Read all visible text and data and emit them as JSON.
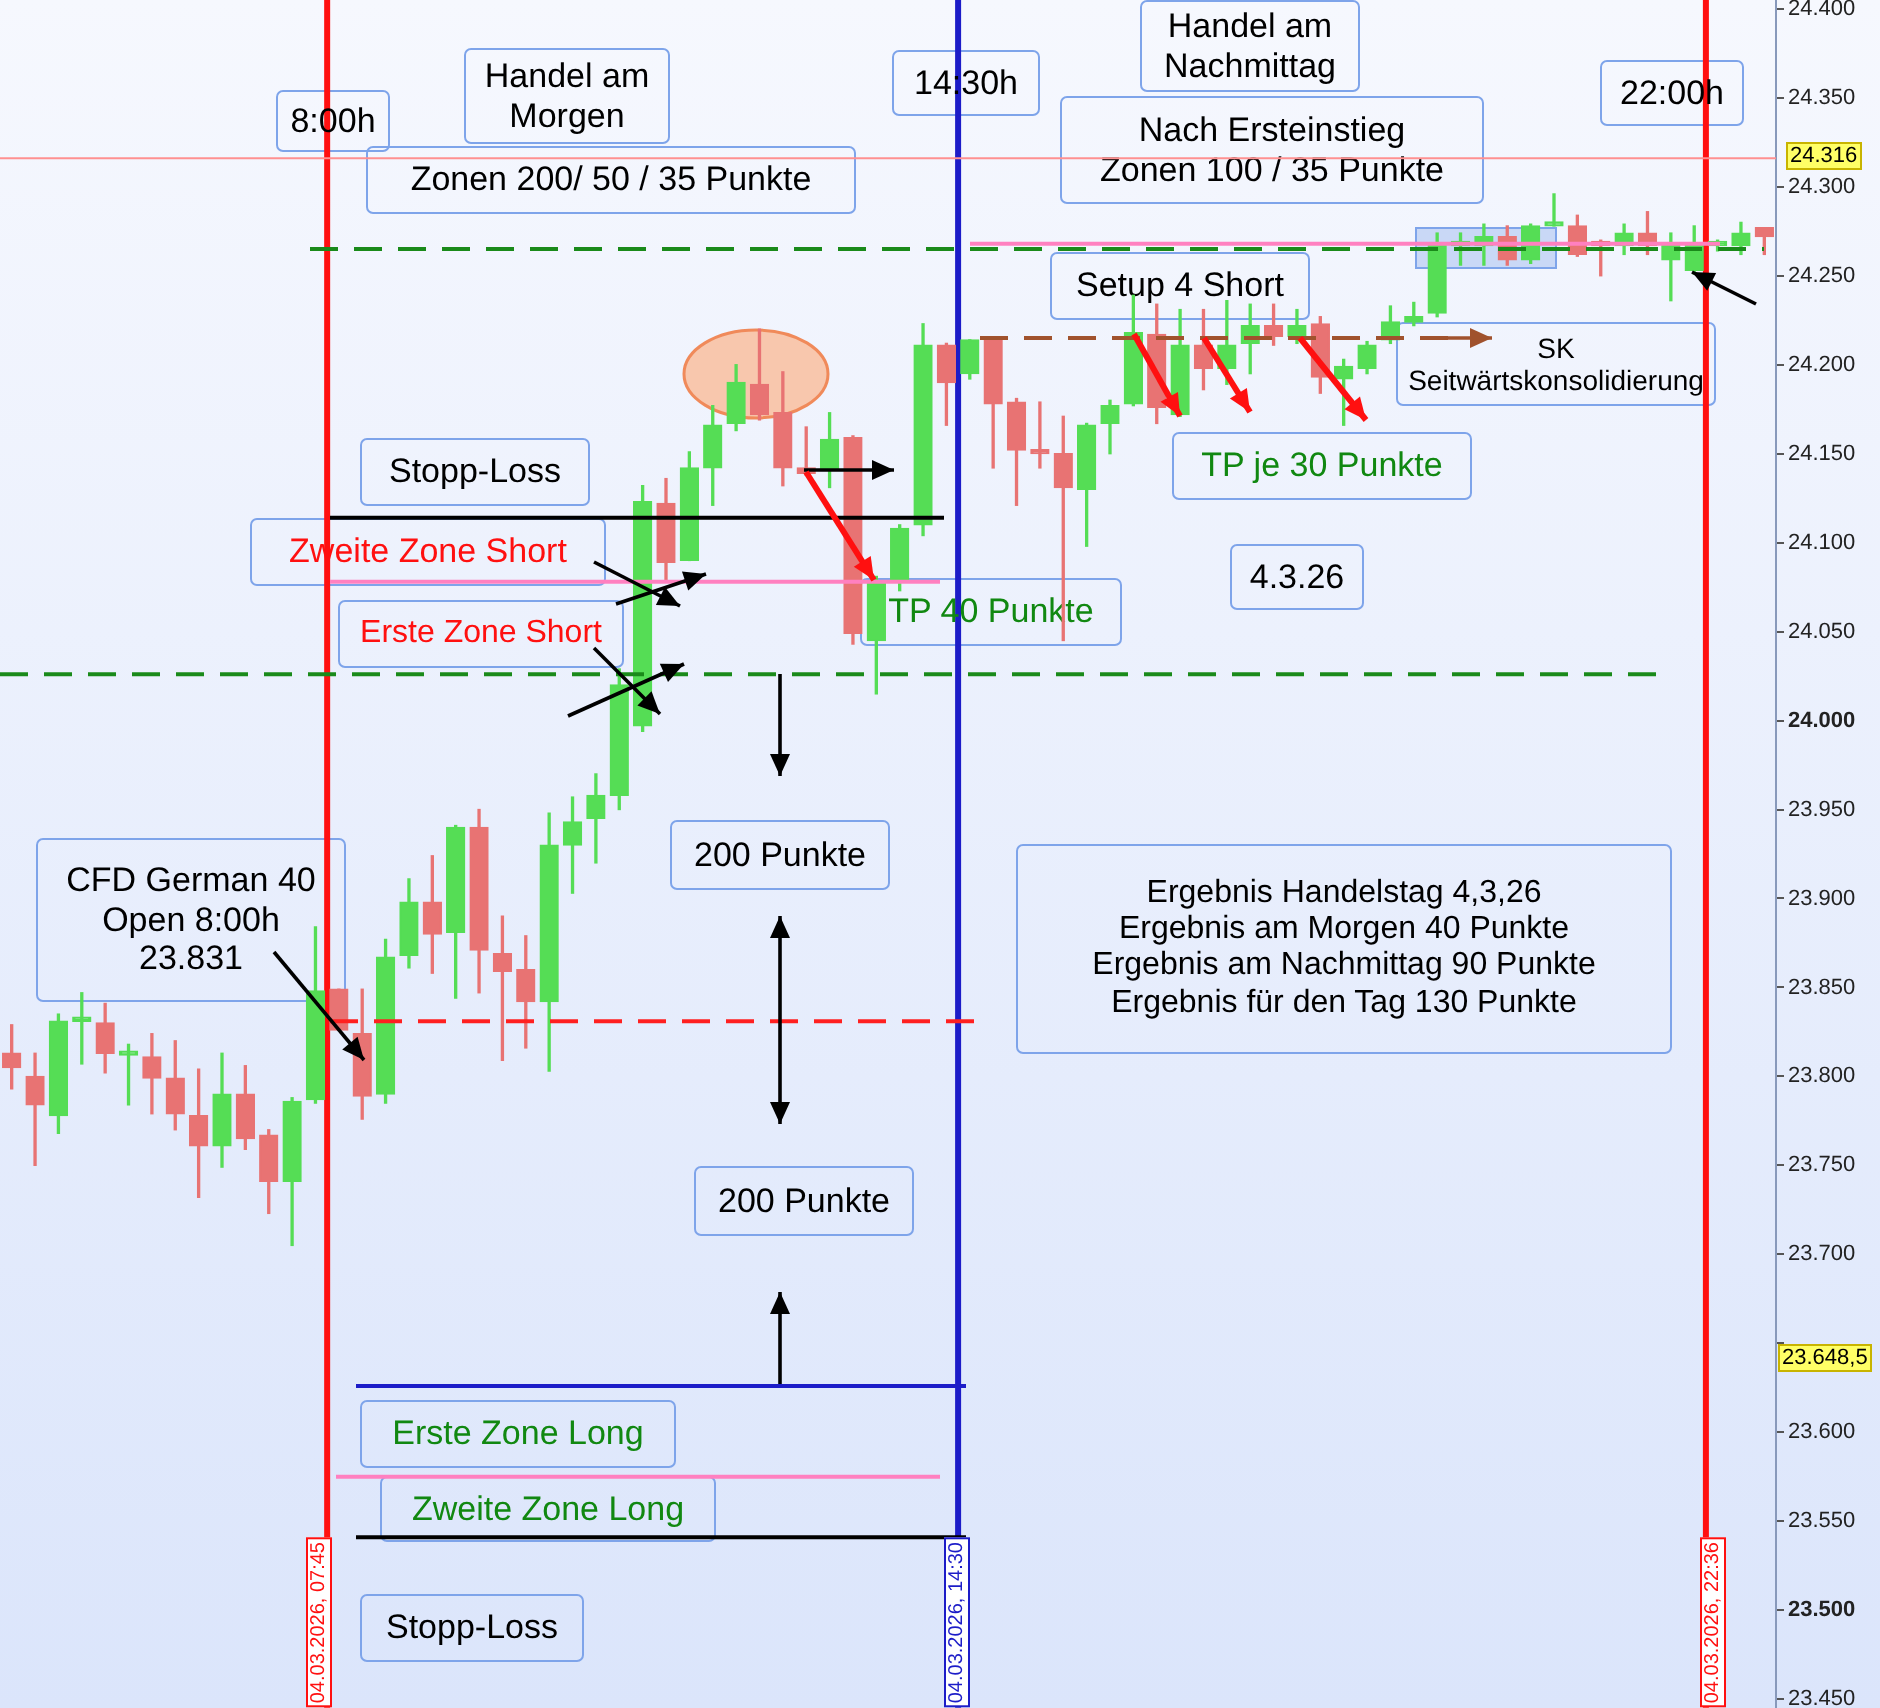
{
  "chart_data": {
    "type": "candlestick",
    "categories": [
      null,
      null,
      null,
      null,
      null,
      null,
      null,
      null,
      null,
      null,
      null,
      null,
      null,
      null,
      null,
      null,
      null,
      null,
      null,
      null,
      null,
      null,
      null,
      null,
      null,
      null,
      null,
      null,
      null,
      null,
      null,
      null,
      null,
      null,
      null,
      null,
      null,
      null,
      null,
      null,
      null,
      null,
      null,
      null,
      null,
      null,
      null,
      null,
      null,
      null,
      null,
      null,
      null,
      null,
      null,
      null,
      null,
      null,
      null,
      null,
      null,
      null,
      null,
      null,
      null,
      null,
      null,
      null,
      null,
      null,
      null,
      null,
      null,
      null,
      null,
      null
    ],
    "ohlc": [
      [
        23813,
        23829,
        23793,
        23805
      ],
      [
        23800,
        23813,
        23750,
        23784
      ],
      [
        23778,
        23835,
        23768,
        23831
      ],
      [
        23831,
        23847,
        23807,
        23831
      ],
      [
        23830,
        23841,
        23802,
        23813
      ],
      [
        23812,
        23818,
        23784,
        23812
      ],
      [
        23811,
        23824,
        23779,
        23799
      ],
      [
        23799,
        23820,
        23770,
        23779
      ],
      [
        23778,
        23804,
        23732,
        23761
      ],
      [
        23761,
        23813,
        23749,
        23790
      ],
      [
        23790,
        23806,
        23759,
        23765
      ],
      [
        23767,
        23770,
        23723,
        23741
      ],
      [
        23741,
        23788,
        23705,
        23786
      ],
      [
        23787,
        23884,
        23785,
        23848
      ],
      [
        23849,
        23849,
        23826,
        23826
      ],
      [
        23824,
        23849,
        23776,
        23789
      ],
      [
        23790,
        23877,
        23785,
        23867
      ],
      [
        23868,
        23911,
        23861,
        23898
      ],
      [
        23898,
        23924,
        23858,
        23880
      ],
      [
        23881,
        23941,
        23844,
        23940
      ],
      [
        23940,
        23950,
        23847,
        23871
      ],
      [
        23869,
        23890,
        23809,
        23859
      ],
      [
        23860,
        23879,
        23816,
        23842
      ],
      [
        23842,
        23948,
        23803,
        23930
      ],
      [
        23930,
        23957,
        23903,
        23943
      ],
      [
        23945,
        23970,
        23920,
        23958
      ],
      [
        23958,
        24029,
        23950,
        24020
      ],
      [
        23997,
        24132,
        23994,
        24123
      ],
      [
        24122,
        24136,
        24079,
        24089
      ],
      [
        24090,
        24151,
        24090,
        24142
      ],
      [
        24142,
        24177,
        24121,
        24166
      ],
      [
        24167,
        24200,
        24163,
        24190
      ],
      [
        24189,
        24220,
        24169,
        24172
      ],
      [
        24173,
        24196,
        24132,
        24142
      ],
      [
        24142,
        24165,
        24138,
        24139
      ],
      [
        24141,
        24173,
        24131,
        24158
      ],
      [
        24159,
        24160,
        24043,
        24049
      ],
      [
        24045,
        24081,
        24015,
        24077
      ],
      [
        24079,
        24110,
        24073,
        24108
      ],
      [
        24110,
        24223,
        24104,
        24211
      ],
      [
        24211,
        24212,
        24166,
        24190
      ],
      [
        24195,
        24214,
        24192,
        24214
      ],
      [
        24214,
        24214,
        24142,
        24178
      ],
      [
        24179,
        24181,
        24121,
        24152
      ],
      [
        24151,
        24179,
        24142,
        24150
      ],
      [
        24150,
        24171,
        24045,
        24131
      ],
      [
        24130,
        24167,
        24098,
        24166
      ],
      [
        24167,
        24180,
        24150,
        24177
      ],
      [
        24178,
        24239,
        24177,
        24218
      ],
      [
        24217,
        24234,
        24167,
        24176
      ],
      [
        24172,
        24231,
        24171,
        24211
      ],
      [
        24211,
        24231,
        24186,
        24198
      ],
      [
        24198,
        24236,
        24189,
        24211
      ],
      [
        24212,
        24234,
        24195,
        24222
      ],
      [
        24222,
        24234,
        24211,
        24216
      ],
      [
        24216,
        24231,
        24212,
        24222
      ],
      [
        24223,
        24227,
        24184,
        24193
      ],
      [
        24192,
        24203,
        24166,
        24199
      ],
      [
        24198,
        24213,
        24195,
        24211
      ],
      [
        24214,
        24233,
        24212,
        24224
      ],
      [
        24224,
        24235,
        24222,
        24227
      ],
      [
        24229,
        24274,
        24227,
        24268
      ],
      [
        24267,
        24274,
        24256,
        24268
      ],
      [
        24267,
        24279,
        24256,
        24272
      ],
      [
        24272,
        24278,
        24256,
        24259
      ],
      [
        24259,
        24279,
        24257,
        24278
      ],
      [
        24278,
        24296,
        24278,
        24279
      ],
      [
        24278,
        24284,
        24261,
        24262
      ],
      [
        24268,
        24270,
        24250,
        24267
      ],
      [
        24267,
        24279,
        24262,
        24274
      ],
      [
        24274,
        24286,
        24262,
        24267
      ],
      [
        24259,
        24274,
        24236,
        24268
      ],
      [
        24253,
        24278,
        24251,
        24267
      ],
      [
        24267,
        24270,
        24264,
        24267
      ],
      [
        24267,
        24280,
        24262,
        24274
      ],
      [
        24277,
        24277,
        24262,
        24272
      ]
    ],
    "colors": [
      "#e87373",
      "#e87373",
      "#55dd55",
      "#55dd55",
      "#e87373",
      "#55dd55",
      "#e87373",
      "#e87373",
      "#e87373",
      "#55dd55",
      "#e87373",
      "#e87373",
      "#55dd55",
      "#55dd55",
      "#e87373",
      "#e87373",
      "#55dd55",
      "#55dd55",
      "#e87373",
      "#55dd55",
      "#e87373",
      "#e87373",
      "#e87373",
      "#55dd55",
      "#55dd55",
      "#55dd55",
      "#55dd55",
      "#55dd55",
      "#e87373",
      "#55dd55",
      "#55dd55",
      "#55dd55",
      "#e87373",
      "#e87373",
      "#e87373",
      "#55dd55",
      "#e87373",
      "#55dd55",
      "#55dd55",
      "#55dd55",
      "#e87373",
      "#55dd55",
      "#e87373",
      "#e87373",
      "#e87373",
      "#e87373",
      "#55dd55",
      "#55dd55",
      "#55dd55",
      "#e87373",
      "#55dd55",
      "#e87373",
      "#55dd55",
      "#55dd55",
      "#e87373",
      "#55dd55",
      "#e87373",
      "#55dd55",
      "#55dd55",
      "#55dd55",
      "#55dd55",
      "#55dd55",
      "#55dd55",
      "#55dd55",
      "#e87373",
      "#55dd55",
      "#55dd55",
      "#e87373",
      "#e87373",
      "#55dd55",
      "#e87373",
      "#55dd55",
      "#55dd55",
      "#55dd55",
      "#55dd55",
      "#e87373"
    ],
    "ylim": [
      23445,
      24405
    ],
    "yticks": [
      {
        "value": 23450,
        "label": "23.450"
      },
      {
        "value": 23500,
        "label": "23.500"
      },
      {
        "value": 23550,
        "label": "23.550"
      },
      {
        "value": 23600,
        "label": "23.600"
      },
      {
        "value": 23650,
        "label": null
      },
      {
        "value": 23700,
        "label": "23.700"
      },
      {
        "value": 23750,
        "label": "23.750"
      },
      {
        "value": 23800,
        "label": "23.800"
      },
      {
        "value": 23850,
        "label": "23.850"
      },
      {
        "value": 23900,
        "label": "23.900"
      },
      {
        "value": 23950,
        "label": "23.950"
      },
      {
        "value": 24000,
        "label": "24.000"
      },
      {
        "value": 24050,
        "label": "24.050"
      },
      {
        "value": 24100,
        "label": "24.100"
      },
      {
        "value": 24150,
        "label": "24.150"
      },
      {
        "value": 24200,
        "label": "24.200"
      },
      {
        "value": 24250,
        "label": "24.250"
      },
      {
        "value": 24300,
        "label": "24.300"
      },
      {
        "value": 24350,
        "label": "24.350"
      },
      {
        "value": 24400,
        "label": "24.400"
      }
    ],
    "tick_labels": "y",
    "ref_lines": [
      {
        "axis": "y",
        "value": 24316,
        "label": "24.316",
        "color": "#ff9090",
        "line_style": "solid"
      },
      {
        "axis": "y",
        "value": 24265,
        "color": "#1a8a1a",
        "line_style": "dashed"
      },
      {
        "axis": "y",
        "value": 24026,
        "color": "#1a8a1a",
        "line_style": "dashed"
      },
      {
        "axis": "y",
        "value": 23831,
        "color": "#ff2020",
        "line_style": "dashed"
      },
      {
        "axis": "y",
        "value": 24114,
        "color": "#000000",
        "line_style": "solid"
      },
      {
        "axis": "y",
        "value": 24078,
        "color": "#ff80c0",
        "line_style": "solid"
      },
      {
        "axis": "y",
        "value": 24268,
        "color": "#ff80c0",
        "line_style": "solid"
      },
      {
        "axis": "y",
        "value": 24215,
        "color": "#a0522d",
        "line_style": "dashed"
      },
      {
        "axis": "y",
        "value": 23626,
        "color": "#1c1cc8",
        "line_style": "solid"
      },
      {
        "axis": "y",
        "value": 23575,
        "color": "#ff80c0",
        "line_style": "solid"
      },
      {
        "axis": "y",
        "value": 23541,
        "color": "#000000",
        "line_style": "solid"
      }
    ],
    "annotations": [
      "8:00h",
      "Handel am",
      "Morgen",
      "Zonen 200/ 50 / 35 Punkte",
      "14:30h",
      "Handel am",
      "Nachmittag",
      "Nach Ersteinstieg",
      "Zonen 100 / 35 Punkte",
      "22:00h",
      "Setup 4 Short",
      "SK",
      "Seitwärtskonsolidierung",
      "Stopp-Loss",
      "Zweite Zone Short",
      "Erste Zone Short",
      "TP 40 Punkte",
      "TP je 30 Punkte",
      "4.3.26",
      "200 Punkte",
      "Ergebnis Handelstag 4,3,26",
      "Ergebnis am Morgen  40 Punkte",
      "Ergebnis am Nachmittag 90 Punkte",
      "Ergebnis für den Tag 130 Punkte",
      "CFD German 40",
      "Open 8:00h",
      "23.831",
      "200 Punkte",
      "Erste Zone Long",
      "Zweite Zone Long",
      "Stopp-Loss",
      "04.03.2026, 07:45",
      "04.03.2026, 14:30",
      "04.03.2026, 22:36",
      "23.648,5"
    ]
  }
}
